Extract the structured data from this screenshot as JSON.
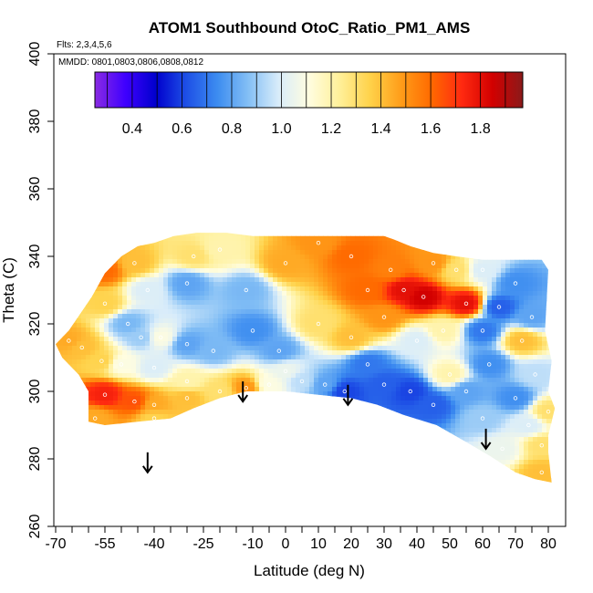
{
  "chart_data": {
    "type": "heatmap",
    "title": "ATOM1 Southbound OtoC_Ratio_PM1_AMS",
    "flights_note": "Flts: 2,3,4,5,6",
    "dates_note": "MMDD: 0801,0803,0806,0808,0812",
    "xlabel": "Latitude (deg N)",
    "ylabel": "Theta (C)",
    "xlim": [
      -70,
      80
    ],
    "ylim": [
      260,
      400
    ],
    "x_ticks": [
      -70,
      -55,
      -40,
      -25,
      -10,
      0,
      10,
      20,
      30,
      40,
      50,
      60,
      70,
      80
    ],
    "x_tick_labels": [
      "-70",
      "-55",
      "-40",
      "-25",
      "-10",
      "0",
      "10",
      "20",
      "30",
      "40",
      "50",
      "60",
      "70",
      "80"
    ],
    "x_minor_step": 5,
    "y_ticks": [
      260,
      280,
      300,
      320,
      340,
      360,
      380,
      400
    ],
    "y_tick_labels": [
      "260",
      "280",
      "300",
      "320",
      "340",
      "360",
      "380",
      "400"
    ],
    "colorbar": {
      "range": [
        0.25,
        1.97
      ],
      "ticks": [
        0.4,
        0.6,
        0.8,
        1.0,
        1.2,
        1.4,
        1.6,
        1.8
      ],
      "tick_labels": [
        "0.4",
        "0.6",
        "0.8",
        "1.0",
        "1.2",
        "1.4",
        "1.6",
        "1.8"
      ],
      "colors": [
        "#8a2be2",
        "#3f00ff",
        "#0000cd",
        "#1e50e6",
        "#3c8cf0",
        "#82bef5",
        "#d8ecfa",
        "#fffde0",
        "#fff09a",
        "#ffd24a",
        "#ff9e1a",
        "#ff6a00",
        "#ff2a10",
        "#d20000",
        "#8b1a1a"
      ]
    },
    "arrows": [
      {
        "lat": -42,
        "theta": 276
      },
      {
        "lat": -13,
        "theta": 297
      },
      {
        "lat": 19,
        "theta": 296
      },
      {
        "lat": 61,
        "theta": 283
      }
    ],
    "field": {
      "boundary": [
        [
          -70,
          314
        ],
        [
          -66,
          318
        ],
        [
          -59,
          328
        ],
        [
          -55,
          335
        ],
        [
          -50,
          340
        ],
        [
          -45,
          343
        ],
        [
          -40,
          344
        ],
        [
          -34,
          346
        ],
        [
          -27,
          347
        ],
        [
          -18,
          347
        ],
        [
          -10,
          346
        ],
        [
          0,
          346
        ],
        [
          10,
          346
        ],
        [
          20,
          346
        ],
        [
          30,
          346
        ],
        [
          33,
          345
        ],
        [
          38,
          343
        ],
        [
          45,
          341
        ],
        [
          52,
          340
        ],
        [
          60,
          339
        ],
        [
          70,
          339
        ],
        [
          78,
          339
        ],
        [
          80,
          336
        ],
        [
          79,
          318
        ],
        [
          81,
          309
        ],
        [
          80,
          300
        ],
        [
          82,
          295
        ],
        [
          80,
          287
        ],
        [
          80,
          282
        ],
        [
          81,
          273
        ],
        [
          76,
          274
        ],
        [
          70,
          276
        ],
        [
          62,
          281
        ],
        [
          55,
          285
        ],
        [
          46,
          290
        ],
        [
          36,
          293
        ],
        [
          28,
          296
        ],
        [
          20,
          298
        ],
        [
          10,
          299
        ],
        [
          0,
          300
        ],
        [
          -5,
          300
        ],
        [
          -12,
          300
        ],
        [
          -20,
          298
        ],
        [
          -28,
          295
        ],
        [
          -35,
          292
        ],
        [
          -45,
          291
        ],
        [
          -55,
          290
        ],
        [
          -60,
          291
        ],
        [
          -60,
          300
        ],
        [
          -63,
          305
        ],
        [
          -68,
          310
        ]
      ],
      "points": [
        {
          "lat": -66,
          "theta": 315,
          "value": 1.45
        },
        {
          "lat": -62,
          "theta": 313,
          "value": 1.4
        },
        {
          "lat": -56,
          "theta": 309,
          "value": 1.35
        },
        {
          "lat": -50,
          "theta": 308,
          "value": 1.1
        },
        {
          "lat": -40,
          "theta": 307,
          "value": 1.0
        },
        {
          "lat": -55,
          "theta": 326,
          "value": 1.35
        },
        {
          "lat": -55,
          "theta": 336,
          "value": 1.6
        },
        {
          "lat": -46,
          "theta": 338,
          "value": 1.4
        },
        {
          "lat": -42,
          "theta": 330,
          "value": 1.0
        },
        {
          "lat": -48,
          "theta": 320,
          "value": 0.85
        },
        {
          "lat": -44,
          "theta": 316,
          "value": 0.9
        },
        {
          "lat": -38,
          "theta": 316,
          "value": 1.1
        },
        {
          "lat": -30,
          "theta": 314,
          "value": 0.8
        },
        {
          "lat": -22,
          "theta": 312,
          "value": 0.85
        },
        {
          "lat": -30,
          "theta": 332,
          "value": 0.8
        },
        {
          "lat": -28,
          "theta": 340,
          "value": 1.3
        },
        {
          "lat": -20,
          "theta": 342,
          "value": 1.2
        },
        {
          "lat": -12,
          "theta": 330,
          "value": 0.85
        },
        {
          "lat": -10,
          "theta": 318,
          "value": 0.75
        },
        {
          "lat": -2,
          "theta": 312,
          "value": 0.8
        },
        {
          "lat": 0,
          "theta": 306,
          "value": 1.05
        },
        {
          "lat": -55,
          "theta": 299,
          "value": 1.75
        },
        {
          "lat": -46,
          "theta": 297,
          "value": 1.65
        },
        {
          "lat": -40,
          "theta": 296,
          "value": 1.45
        },
        {
          "lat": -30,
          "theta": 298,
          "value": 1.4
        },
        {
          "lat": -20,
          "theta": 300,
          "value": 1.3
        },
        {
          "lat": -12,
          "theta": 301,
          "value": 1.5
        },
        {
          "lat": -58,
          "theta": 292,
          "value": 1.45
        },
        {
          "lat": -40,
          "theta": 292,
          "value": 1.35
        },
        {
          "lat": -30,
          "theta": 303,
          "value": 1.2
        },
        {
          "lat": -5,
          "theta": 302,
          "value": 1.1
        },
        {
          "lat": 5,
          "theta": 303,
          "value": 0.95
        },
        {
          "lat": 10,
          "theta": 320,
          "value": 1.3
        },
        {
          "lat": 0,
          "theta": 338,
          "value": 1.45
        },
        {
          "lat": 10,
          "theta": 344,
          "value": 1.5
        },
        {
          "lat": 20,
          "theta": 340,
          "value": 1.6
        },
        {
          "lat": 25,
          "theta": 330,
          "value": 1.6
        },
        {
          "lat": 32,
          "theta": 336,
          "value": 1.55
        },
        {
          "lat": 36,
          "theta": 330,
          "value": 1.8
        },
        {
          "lat": 42,
          "theta": 328,
          "value": 1.85
        },
        {
          "lat": 30,
          "theta": 322,
          "value": 1.5
        },
        {
          "lat": 20,
          "theta": 316,
          "value": 1.4
        },
        {
          "lat": 45,
          "theta": 338,
          "value": 1.5
        },
        {
          "lat": 52,
          "theta": 336,
          "value": 1.3
        },
        {
          "lat": 55,
          "theta": 326,
          "value": 1.8
        },
        {
          "lat": 48,
          "theta": 318,
          "value": 1.2
        },
        {
          "lat": 40,
          "theta": 315,
          "value": 1.0
        },
        {
          "lat": 25,
          "theta": 308,
          "value": 0.7
        },
        {
          "lat": 30,
          "theta": 302,
          "value": 0.65
        },
        {
          "lat": 38,
          "theta": 300,
          "value": 0.6
        },
        {
          "lat": 45,
          "theta": 296,
          "value": 0.65
        },
        {
          "lat": 18,
          "theta": 300,
          "value": 0.6
        },
        {
          "lat": 12,
          "theta": 302,
          "value": 0.8
        },
        {
          "lat": 50,
          "theta": 305,
          "value": 1.2
        },
        {
          "lat": 55,
          "theta": 300,
          "value": 0.8
        },
        {
          "lat": 60,
          "theta": 292,
          "value": 0.9
        },
        {
          "lat": 62,
          "theta": 308,
          "value": 0.75
        },
        {
          "lat": 60,
          "theta": 318,
          "value": 0.7
        },
        {
          "lat": 65,
          "theta": 325,
          "value": 0.65
        },
        {
          "lat": 70,
          "theta": 332,
          "value": 0.75
        },
        {
          "lat": 75,
          "theta": 322,
          "value": 0.8
        },
        {
          "lat": 72,
          "theta": 315,
          "value": 1.4
        },
        {
          "lat": 76,
          "theta": 305,
          "value": 0.95
        },
        {
          "lat": 70,
          "theta": 298,
          "value": 0.75
        },
        {
          "lat": 74,
          "theta": 290,
          "value": 1.0
        },
        {
          "lat": 78,
          "theta": 284,
          "value": 1.3
        },
        {
          "lat": 78,
          "theta": 276,
          "value": 1.4
        },
        {
          "lat": 66,
          "theta": 283,
          "value": 1.05
        },
        {
          "lat": 80,
          "theta": 294,
          "value": 1.3
        },
        {
          "lat": 60,
          "theta": 336,
          "value": 1.0
        }
      ]
    }
  }
}
